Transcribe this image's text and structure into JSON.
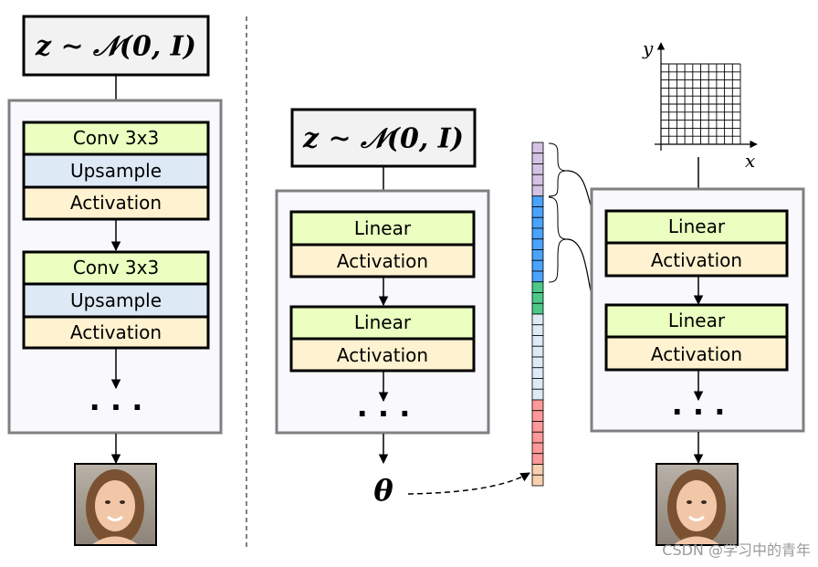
{
  "left_panel": {
    "latent": "z ∼ 𝒩(0, I)",
    "blocks": [
      {
        "conv": "Conv 3x3",
        "upsample": "Upsample",
        "activation": "Activation"
      },
      {
        "conv": "Conv 3x3",
        "upsample": "Upsample",
        "activation": "Activation"
      }
    ],
    "ellipsis": "· · ·"
  },
  "middle_panel": {
    "latent": "z ∼ 𝒩(0, I)",
    "blocks": [
      {
        "linear": "Linear",
        "activation": "Activation"
      },
      {
        "linear": "Linear",
        "activation": "Activation"
      }
    ],
    "ellipsis": "· · ·",
    "output": "θ"
  },
  "right_panel": {
    "axis_x": "x",
    "axis_y": "y",
    "blocks": [
      {
        "linear": "Linear",
        "activation": "Activation"
      },
      {
        "linear": "Linear",
        "activation": "Activation"
      }
    ],
    "ellipsis": "· · ·"
  },
  "parameter_vector": [
    {
      "color": "#d5c3e3",
      "count": 5
    },
    {
      "color": "#4aa3ff",
      "count": 8
    },
    {
      "color": "#4cc887",
      "count": 3
    },
    {
      "color": "#deebf7",
      "count": 8
    },
    {
      "color": "#ff9999",
      "count": 6
    },
    {
      "color": "#f9cfae",
      "count": 2
    }
  ],
  "colors": {
    "conv": "#eaffc0",
    "linear": "#eaffc0",
    "upsample": "#dde9f5",
    "activation": "#fff2d0",
    "network_box_fill": "#f9f8fc",
    "network_box_stroke": "#808080",
    "latent_fill": "#f2f2f2"
  },
  "watermark": "CSDN @学习中的青年"
}
